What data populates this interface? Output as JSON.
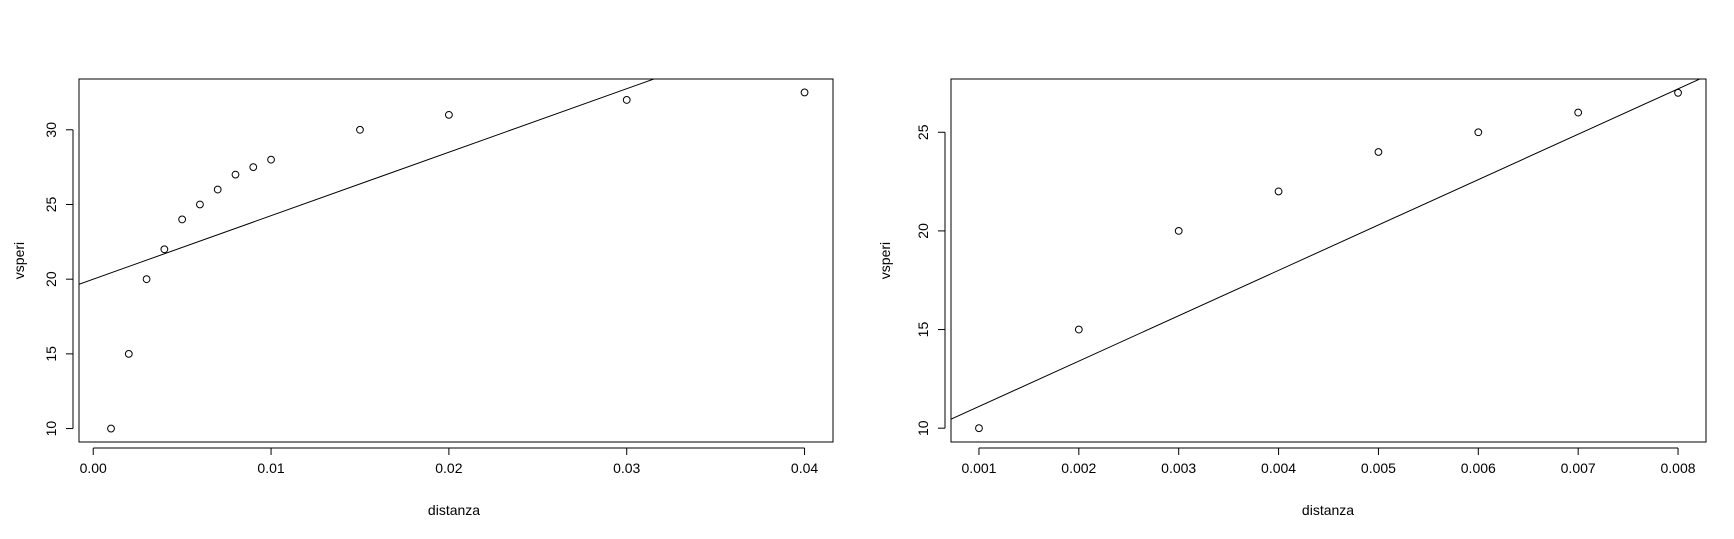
{
  "chart_data": [
    {
      "type": "scatter",
      "title": "",
      "xlabel": "distanza",
      "ylabel": "vsperi",
      "xlim": [
        -0.0008,
        0.0416
      ],
      "ylim": [
        9.1,
        33.4
      ],
      "x_ticks": [
        0.0,
        0.01,
        0.02,
        0.03,
        0.04
      ],
      "x_tick_labels": [
        "0.00",
        "0.01",
        "0.02",
        "0.03",
        "0.04"
      ],
      "y_ticks": [
        10,
        15,
        20,
        25,
        30
      ],
      "y_tick_labels": [
        "10",
        "15",
        "20",
        "25",
        "30"
      ],
      "grid": false,
      "points": {
        "x": [
          0.001,
          0.002,
          0.003,
          0.004,
          0.005,
          0.006,
          0.007,
          0.008,
          0.009,
          0.01,
          0.015,
          0.02,
          0.03,
          0.04
        ],
        "y": [
          10,
          15,
          20,
          22,
          24,
          25,
          26,
          27,
          27.5,
          28,
          30,
          31,
          32,
          32.5
        ]
      },
      "fit_line": {
        "intercept": 20.0,
        "slope": 425
      }
    },
    {
      "type": "scatter",
      "title": "",
      "xlabel": "distanza",
      "ylabel": "vsperi",
      "xlim": [
        0.00072,
        0.00828
      ],
      "ylim": [
        9.3,
        27.7
      ],
      "x_ticks": [
        0.001,
        0.002,
        0.003,
        0.004,
        0.005,
        0.006,
        0.007,
        0.008
      ],
      "x_tick_labels": [
        "0.001",
        "0.002",
        "0.003",
        "0.004",
        "0.005",
        "0.006",
        "0.007",
        "0.008"
      ],
      "y_ticks": [
        10,
        15,
        20,
        25
      ],
      "y_tick_labels": [
        "10",
        "15",
        "20",
        "25"
      ],
      "grid": false,
      "points": {
        "x": [
          0.001,
          0.002,
          0.003,
          0.004,
          0.005,
          0.006,
          0.007,
          0.008
        ],
        "y": [
          10,
          15,
          20,
          22,
          24,
          25,
          26,
          27
        ]
      },
      "fit_line": {
        "intercept": 8.8,
        "slope": 2300
      }
    }
  ]
}
